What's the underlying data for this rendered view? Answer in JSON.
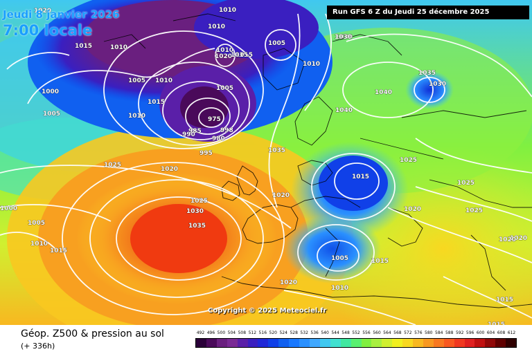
{
  "header": {
    "valid_date": "Jeudi 8 janvier 2026",
    "valid_time": "7:00 locale",
    "run_info": "Run GFS 6 Z du Jeudi 25 décembre 2025"
  },
  "footer": {
    "title": "Géop. Z500 & pression au sol",
    "subtitle": "(+ 336h)",
    "copyright": "Copyright © 2025 Meteociel.fr"
  },
  "legend": {
    "values": [
      "492",
      "496",
      "500",
      "504",
      "508",
      "512",
      "516",
      "520",
      "524",
      "528",
      "532",
      "536",
      "540",
      "544",
      "548",
      "552",
      "556",
      "560",
      "564",
      "568",
      "572",
      "576",
      "580",
      "584",
      "588",
      "592",
      "596",
      "600",
      "604",
      "608",
      "612"
    ],
    "colors": [
      "#2a0038",
      "#4a0a5a",
      "#6a1f7f",
      "#7a2a95",
      "#5a1fa8",
      "#3a1fc0",
      "#2028d8",
      "#1040e8",
      "#1060f0",
      "#1878ff",
      "#2a90ff",
      "#40a8ff",
      "#40c8f0",
      "#40e0d0",
      "#40e8a0",
      "#58f070",
      "#80f040",
      "#a8f040",
      "#d0f030",
      "#f0f020",
      "#f8d820",
      "#f8b820",
      "#f89820",
      "#f87820",
      "#f85820",
      "#f03820",
      "#e02020",
      "#c01010",
      "#900808",
      "#600000",
      "#300000"
    ]
  },
  "map_colors": {
    "low_core": "#5a1068",
    "trough": "#1a3ad0",
    "mid": "#40c8f0",
    "ridge": "#f07a20",
    "high_core": "#f04810",
    "land_lines": "#000000",
    "isobar": "#ffffff"
  },
  "isobar_labels": [
    "1010",
    "1020",
    "1015",
    "1010",
    "1005",
    "1010",
    "1015",
    "1000",
    "1005",
    "1005",
    "1010",
    "1010",
    "1015",
    "1010",
    "1010",
    "1020",
    "1015",
    "1005",
    "1005",
    "975",
    "985",
    "990",
    "998",
    "995",
    "980",
    "1025",
    "1020",
    "1000",
    "1005",
    "1010",
    "1015",
    "1025",
    "1030",
    "1035",
    "1020",
    "1035",
    "1030",
    "1040",
    "1040",
    "1035",
    "1030",
    "1025",
    "1015",
    "1020",
    "1025",
    "1025",
    "1020",
    "1020",
    "1005",
    "1015",
    "1010",
    "1020",
    "1015",
    "1015",
    "1030",
    "1030"
  ]
}
